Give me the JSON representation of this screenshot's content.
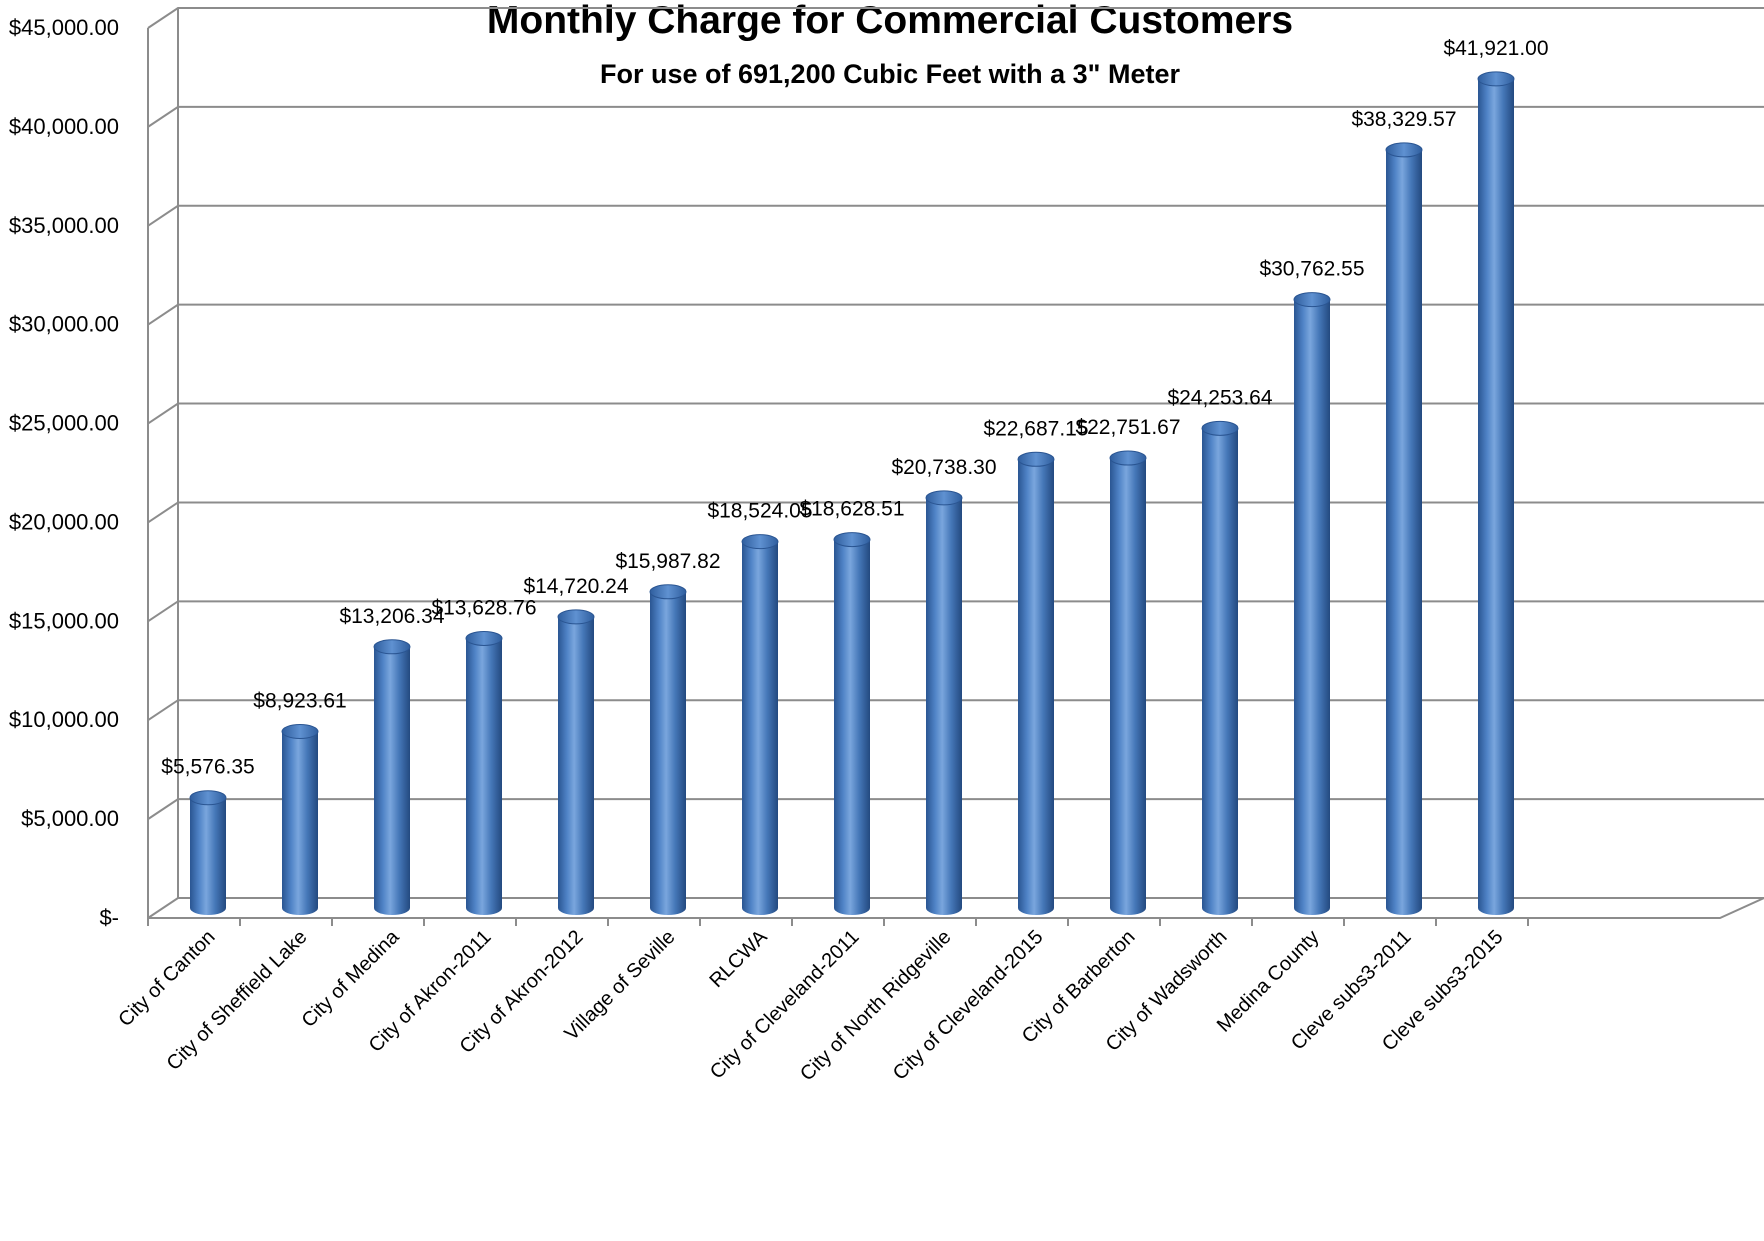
{
  "chart_data": {
    "type": "bar",
    "title": "Monthly Charge for Commercial Customers",
    "subtitle": "For use of 691,200 Cubic Feet with a 3\" Meter",
    "categories": [
      "City of Canton",
      "City of Sheffield Lake",
      "City of Medina",
      "City of Akron-2011",
      "City of Akron-2012",
      "Village of Seville",
      "RLCWA",
      "City of Cleveland-2011",
      "City of North Ridgeville",
      "City of Cleveland-2015",
      "City of Barberton",
      "City of Wadsworth",
      "Medina County",
      "Cleve subs3-2011",
      "Cleve subs3-2015"
    ],
    "values": [
      5576.35,
      8923.61,
      13206.34,
      13628.76,
      14720.24,
      15987.82,
      18524.05,
      18628.51,
      20738.3,
      22687.15,
      22751.67,
      24253.64,
      30762.55,
      38329.57,
      41921.0
    ],
    "data_labels": [
      "$5,576.35",
      "$8,923.61",
      "$13,206.34",
      "$13,628.76",
      "$14,720.24",
      "$15,987.82",
      "$18,524.05",
      "$18,628.51",
      "$20,738.30",
      "$22,687.15",
      "$22,751.67",
      "$24,253.64",
      "$30,762.55",
      "$38,329.57",
      "$41,921.00"
    ],
    "ylim": [
      0,
      45000
    ],
    "yticks": [
      0,
      5000,
      10000,
      15000,
      20000,
      25000,
      30000,
      35000,
      40000,
      45000
    ],
    "ytick_labels": [
      "$-",
      "$5,000.00",
      "$10,000.00",
      "$15,000.00",
      "$20,000.00",
      "$25,000.00",
      "$30,000.00",
      "$35,000.00",
      "$40,000.00",
      "$45,000.00"
    ],
    "xlabel": "",
    "ylabel": "",
    "grid": true,
    "legend": "none",
    "style": "3d-cylinder",
    "bar_color": "#4a7ebf"
  }
}
